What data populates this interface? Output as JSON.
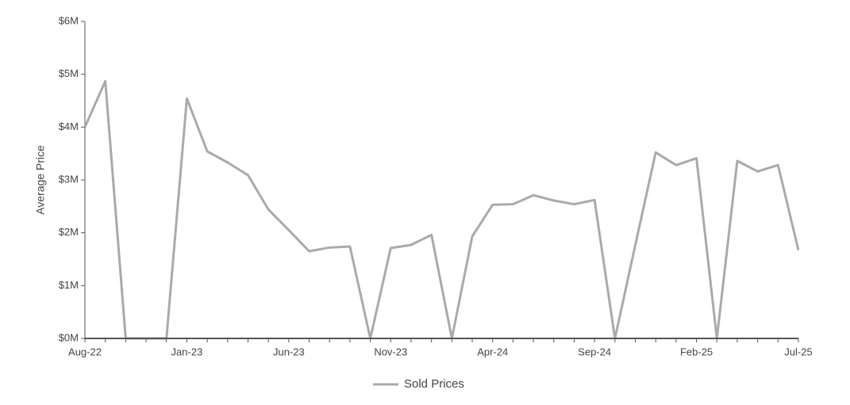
{
  "chart_data": {
    "type": "line",
    "y_label": "Average Price",
    "categories": [
      "Aug-22",
      null,
      null,
      null,
      null,
      "Jan-23",
      null,
      null,
      null,
      null,
      "Jun-23",
      null,
      null,
      null,
      null,
      "Nov-23",
      null,
      null,
      null,
      null,
      "Apr-24",
      null,
      null,
      null,
      null,
      "Sep-24",
      null,
      null,
      null,
      null,
      "Feb-25",
      null,
      null,
      null,
      null,
      "Jul-25"
    ],
    "series": [
      {
        "name": "Sold Prices",
        "color": "#aaaaaa",
        "values": [
          4000000,
          4870000,
          0,
          0,
          0,
          4540000,
          3540000,
          3330000,
          3090000,
          2440000,
          2050000,
          1650000,
          1720000,
          1740000,
          0,
          1710000,
          1770000,
          1960000,
          0,
          1930000,
          2530000,
          2540000,
          2710000,
          2610000,
          2540000,
          2620000,
          0,
          1770000,
          3520000,
          3280000,
          3410000,
          0,
          3360000,
          3160000,
          3280000,
          1670000
        ]
      }
    ],
    "ylim": [
      0,
      6000000
    ],
    "yticks": [
      {
        "value": 0,
        "label": "$0M"
      },
      {
        "value": 1000000,
        "label": "$1M"
      },
      {
        "value": 2000000,
        "label": "$2M"
      },
      {
        "value": 3000000,
        "label": "$3M"
      },
      {
        "value": 4000000,
        "label": "$4M"
      },
      {
        "value": 5000000,
        "label": "$5M"
      },
      {
        "value": 6000000,
        "label": "$6M"
      }
    ],
    "legend": "bottom"
  }
}
